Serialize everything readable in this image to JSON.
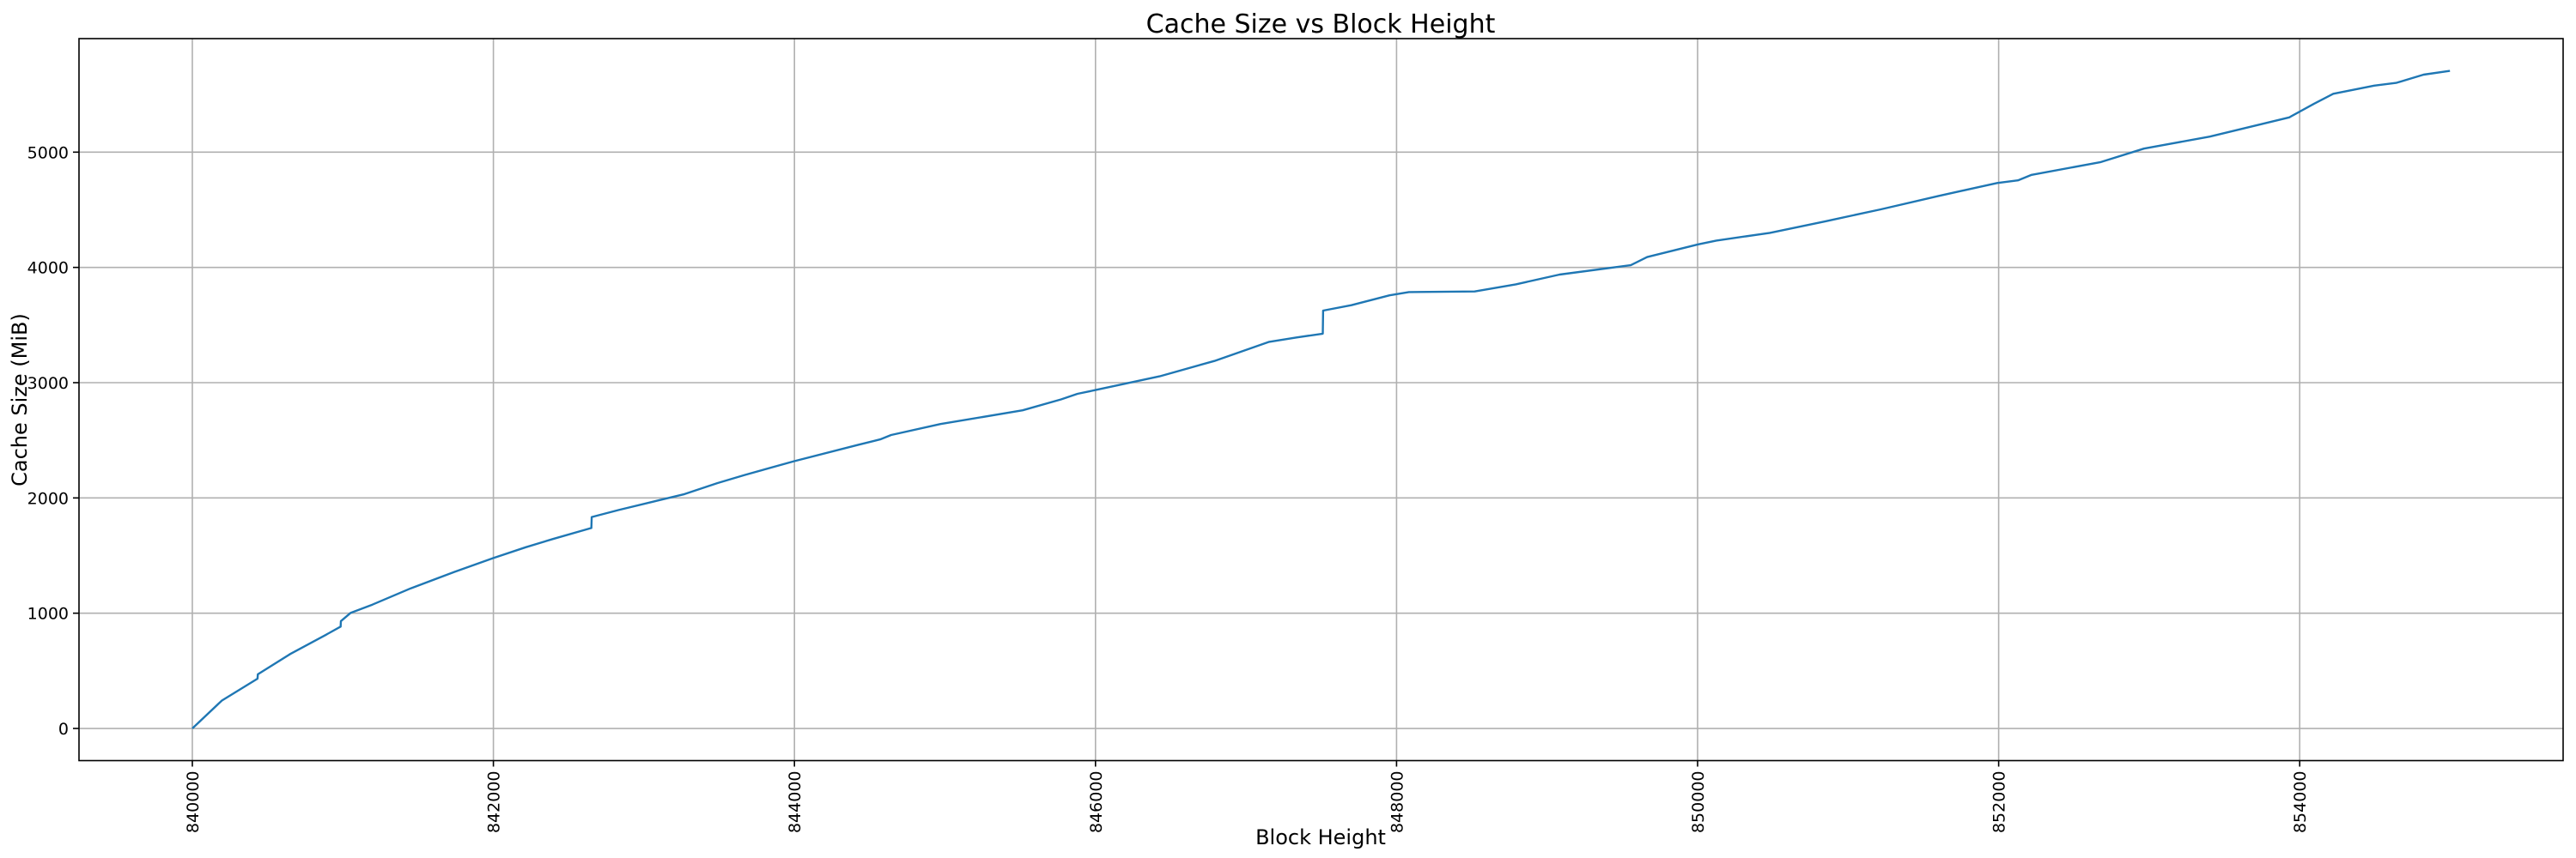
{
  "chart_data": {
    "type": "line",
    "title": "Cache Size vs Block Height",
    "xlabel": "Block Height",
    "ylabel": "Cache Size (MiB)",
    "xlim": [
      839247,
      855750
    ],
    "ylim": [
      -279,
      5985
    ],
    "grid": true,
    "line_color": "#1f77b4",
    "xticks": [
      840000,
      842000,
      844000,
      846000,
      848000,
      850000,
      852000,
      854000
    ],
    "xtick_labels": [
      "840000",
      "842000",
      "844000",
      "846000",
      "848000",
      "850000",
      "852000",
      "854000"
    ],
    "yticks": [
      0,
      1000,
      2000,
      3000,
      4000,
      5000
    ],
    "ytick_labels": [
      "0",
      "1000",
      "2000",
      "3000",
      "4000",
      "5000"
    ],
    "series": [
      {
        "x": [
          840000,
          840196,
          840433,
          840435,
          840651,
          840887,
          840985,
          840987,
          841051,
          841196,
          841451,
          841742,
          841996,
          842215,
          842396,
          842651,
          842653,
          842833,
          843087,
          843269,
          843487,
          843669,
          843996,
          844424,
          844570,
          844642,
          844970,
          845516,
          845771,
          845880,
          846000,
          846426,
          846790,
          847154,
          847336,
          847510,
          847512,
          847700,
          847954,
          848082,
          848519,
          848792,
          849083,
          849556,
          849665,
          850004,
          850124,
          850480,
          850850,
          851217,
          851600,
          851990,
          852128,
          852219,
          852674,
          852965,
          853403,
          853931,
          854095,
          854223,
          854495,
          854641,
          854823,
          854998
        ],
        "y": [
          0,
          242,
          432,
          470,
          646,
          812,
          884,
          931,
          1002,
          1074,
          1216,
          1359,
          1477,
          1572,
          1644,
          1739,
          1834,
          1895,
          1976,
          2033,
          2128,
          2199,
          2318,
          2461,
          2508,
          2546,
          2641,
          2760,
          2855,
          2903,
          2936,
          3055,
          3188,
          3354,
          3392,
          3425,
          3625,
          3672,
          3758,
          3786,
          3791,
          3853,
          3938,
          4019,
          4090,
          4200,
          4233,
          4300,
          4400,
          4504,
          4620,
          4732,
          4755,
          4803,
          4912,
          5031,
          5135,
          5302,
          5420,
          5506,
          5577,
          5601,
          5672,
          5705
        ]
      }
    ]
  }
}
